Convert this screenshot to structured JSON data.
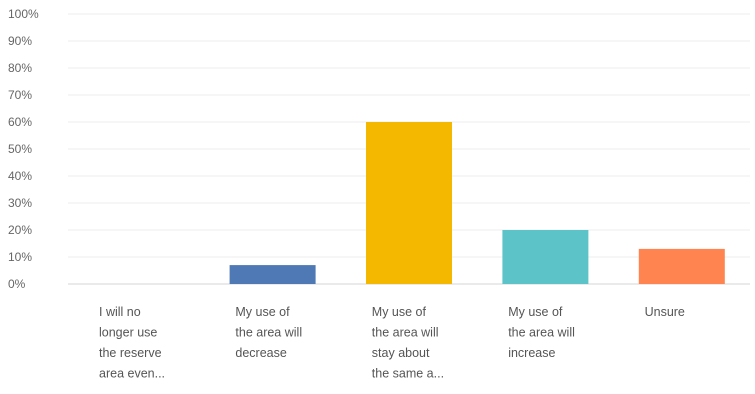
{
  "chart_data": {
    "type": "bar",
    "title": "",
    "xlabel": "",
    "ylabel": "",
    "ylim": [
      0,
      100
    ],
    "y_ticks": [
      "0%",
      "10%",
      "20%",
      "30%",
      "40%",
      "50%",
      "60%",
      "70%",
      "80%",
      "90%",
      "100%"
    ],
    "grid": true,
    "legend": "none",
    "categories": [
      [
        "I will no",
        "longer use",
        "the reserve",
        "area even..."
      ],
      [
        "My use of",
        "the area will",
        "decrease"
      ],
      [
        "My use of",
        "the area will",
        "stay about",
        "the same a..."
      ],
      [
        "My use of",
        "the area will",
        "increase"
      ],
      [
        "Unsure"
      ]
    ],
    "values": [
      0,
      7,
      60,
      20,
      13
    ],
    "colors": [
      "#1F77B4",
      "#4E79B5",
      "#F5B800",
      "#5CC4C8",
      "#FF8450"
    ]
  }
}
